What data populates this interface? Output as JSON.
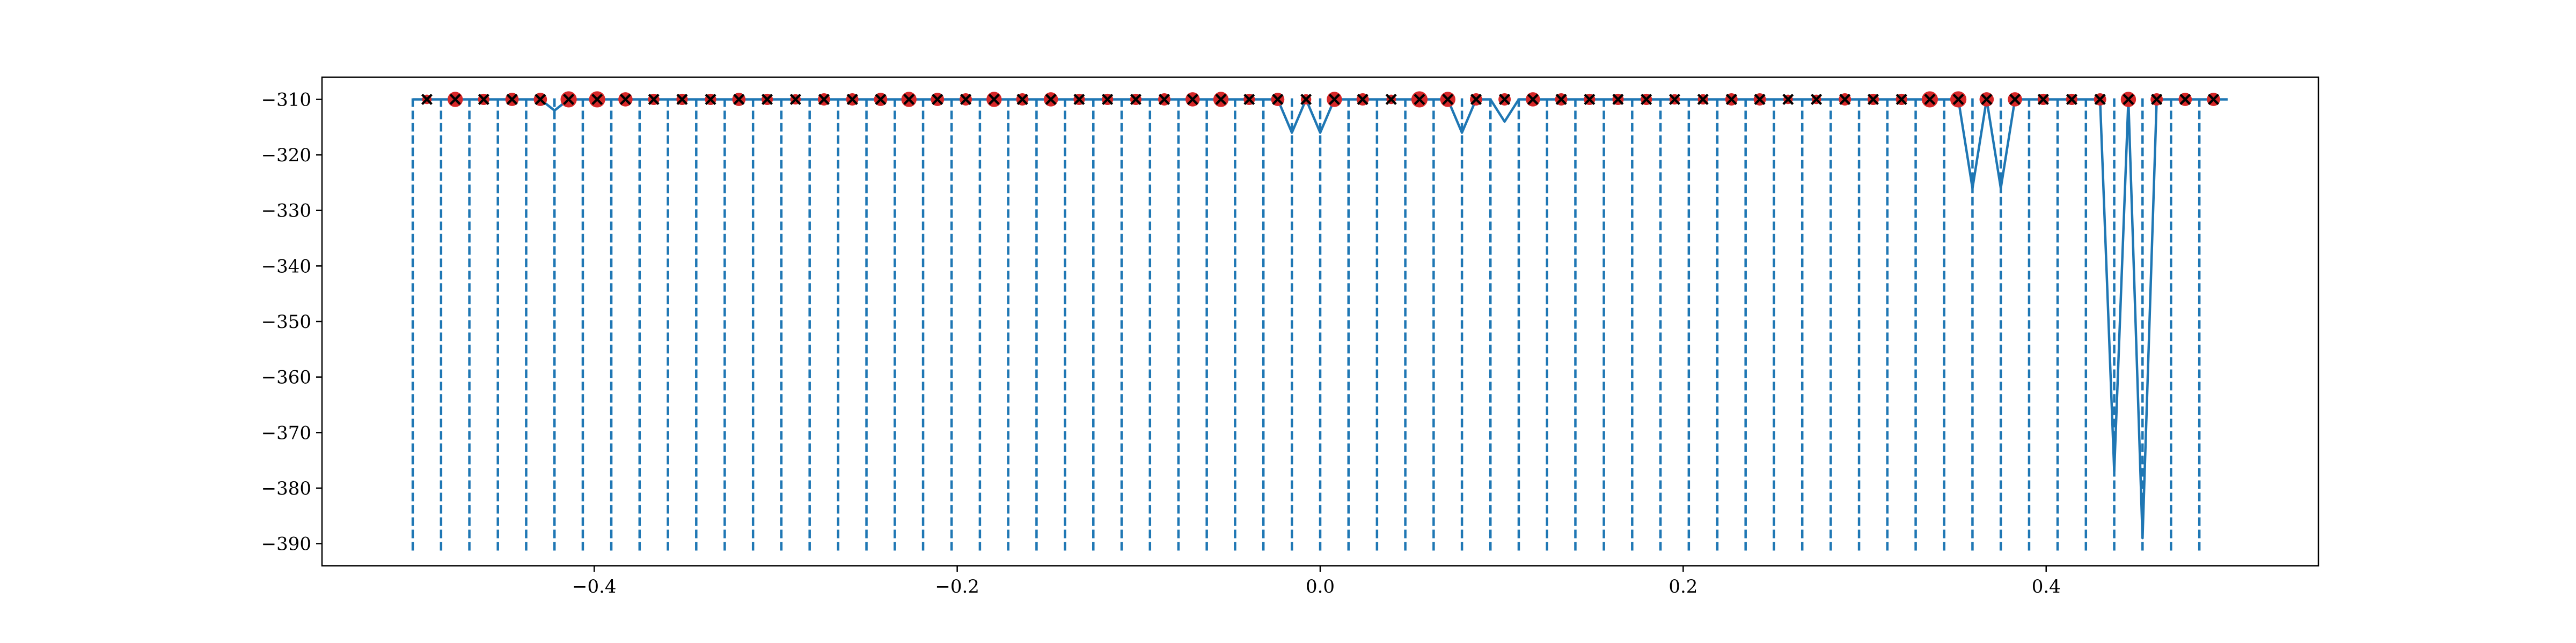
{
  "chart_data": {
    "type": "line",
    "title": "",
    "xlabel": "",
    "ylabel": "",
    "xlim": [
      -0.55,
      0.55
    ],
    "ylim": [
      -394,
      -306
    ],
    "grid": false,
    "legend": "none",
    "x_ticks": [
      -0.4,
      -0.2,
      0.0,
      0.2,
      0.4
    ],
    "x_tick_labels": [
      "−0.4",
      "−0.2",
      "0.0",
      "0.2",
      "0.4"
    ],
    "y_ticks": [
      -310,
      -320,
      -330,
      -340,
      -350,
      -360,
      -370,
      -380,
      -390
    ],
    "y_tick_labels": [
      "−310",
      "−320",
      "−330",
      "−340",
      "−350",
      "−360",
      "−370",
      "−380",
      "−390"
    ],
    "vertical_dashed_lines": {
      "color": "#1f77b4",
      "x": [
        -0.5,
        -0.4844,
        -0.4688,
        -0.4531,
        -0.4375,
        -0.4219,
        -0.4063,
        -0.3906,
        -0.375,
        -0.3594,
        -0.3438,
        -0.3281,
        -0.3125,
        -0.2969,
        -0.2813,
        -0.2656,
        -0.25,
        -0.2344,
        -0.2188,
        -0.2031,
        -0.1875,
        -0.1719,
        -0.1563,
        -0.1406,
        -0.125,
        -0.1094,
        -0.0938,
        -0.0781,
        -0.0625,
        -0.0469,
        -0.0313,
        -0.0156,
        0.0,
        0.0156,
        0.0313,
        0.0469,
        0.0625,
        0.0781,
        0.0938,
        0.1094,
        0.125,
        0.1406,
        0.1563,
        0.1719,
        0.1875,
        0.2031,
        0.2188,
        0.2344,
        0.25,
        0.2656,
        0.2813,
        0.2969,
        0.3125,
        0.3281,
        0.3438,
        0.3594,
        0.375,
        0.3906,
        0.4063,
        0.4219,
        0.4375,
        0.4531,
        0.4688,
        0.4844
      ]
    },
    "series": [
      {
        "type": "line",
        "color": "#1f77b4",
        "x": [
          -0.5,
          -0.4922,
          -0.4844,
          -0.4766,
          -0.4688,
          -0.4609,
          -0.4531,
          -0.4453,
          -0.4375,
          -0.4297,
          -0.4219,
          -0.4141,
          -0.4063,
          -0.3984,
          -0.3906,
          -0.3828,
          -0.375,
          -0.3672,
          -0.3594,
          -0.3516,
          -0.3438,
          -0.3359,
          -0.3281,
          -0.3203,
          -0.3125,
          -0.3047,
          -0.2969,
          -0.2891,
          -0.2813,
          -0.2734,
          -0.2656,
          -0.2578,
          -0.25,
          -0.2422,
          -0.2344,
          -0.2266,
          -0.2188,
          -0.2109,
          -0.2031,
          -0.1953,
          -0.1875,
          -0.1797,
          -0.1719,
          -0.1641,
          -0.1563,
          -0.1484,
          -0.1406,
          -0.1328,
          -0.125,
          -0.1172,
          -0.1094,
          -0.1016,
          -0.0938,
          -0.0859,
          -0.0781,
          -0.0703,
          -0.0625,
          -0.0547,
          -0.0469,
          -0.0391,
          -0.0313,
          -0.0234,
          -0.0156,
          -0.0078,
          0.0,
          0.0078,
          0.0156,
          0.0234,
          0.0313,
          0.0391,
          0.0469,
          0.0547,
          0.0625,
          0.0703,
          0.0781,
          0.0859,
          0.0938,
          0.1016,
          0.1094,
          0.1172,
          0.125,
          0.1328,
          0.1406,
          0.1484,
          0.1563,
          0.1641,
          0.1719,
          0.1797,
          0.1875,
          0.1953,
          0.2031,
          0.2109,
          0.2188,
          0.2266,
          0.2344,
          0.2422,
          0.25,
          0.2578,
          0.2656,
          0.2734,
          0.2813,
          0.2891,
          0.2969,
          0.3047,
          0.3125,
          0.3203,
          0.3281,
          0.3359,
          0.3438,
          0.3516,
          0.3594,
          0.3672,
          0.375,
          0.3828,
          0.3906,
          0.3984,
          0.4063,
          0.4141,
          0.4219,
          0.4297,
          0.4375,
          0.4453,
          0.4531,
          0.4609,
          0.4688,
          0.4766,
          0.4844,
          0.4922,
          0.5
        ],
        "y": [
          -310,
          -310,
          -310,
          -310,
          -310,
          -310,
          -310,
          -310,
          -310,
          -310,
          -312,
          -310,
          -310,
          -310,
          -310,
          -310,
          -310,
          -310,
          -310,
          -310,
          -310,
          -310,
          -310,
          -310,
          -310,
          -310,
          -310,
          -310,
          -310,
          -310,
          -310,
          -310,
          -310,
          -310,
          -310,
          -310,
          -310,
          -310,
          -310,
          -310,
          -310,
          -310,
          -310,
          -310,
          -310,
          -310,
          -310,
          -310,
          -310,
          -310,
          -310,
          -310,
          -310,
          -310,
          -310,
          -310,
          -310,
          -310,
          -310,
          -310,
          -310,
          -310,
          -316,
          -310,
          -316,
          -310,
          -310,
          -310,
          -310,
          -310,
          -310,
          -310,
          -310,
          -310,
          -316,
          -310,
          -310,
          -314,
          -310,
          -310,
          -310,
          -310,
          -310,
          -310,
          -310,
          -310,
          -310,
          -310,
          -310,
          -310,
          -310,
          -310,
          -310,
          -310,
          -310,
          -310,
          -310,
          -310,
          -310,
          -310,
          -310,
          -310,
          -310,
          -310,
          -310,
          -310,
          -310,
          -310,
          -310,
          -310,
          -326,
          -310,
          -326,
          -310,
          -310,
          -310,
          -310,
          -310,
          -310,
          -310,
          -377,
          -310,
          -389,
          -310,
          -310,
          -310,
          -310,
          -310,
          -310
        ]
      },
      {
        "type": "scatter",
        "marker": "x",
        "color": "#000000",
        "x": [
          -0.4922,
          -0.4766,
          -0.4609,
          -0.4453,
          -0.4297,
          -0.4141,
          -0.3984,
          -0.3828,
          -0.3672,
          -0.3516,
          -0.3359,
          -0.3203,
          -0.3047,
          -0.2891,
          -0.2734,
          -0.2578,
          -0.2422,
          -0.2266,
          -0.2109,
          -0.1953,
          -0.1797,
          -0.1641,
          -0.1484,
          -0.1328,
          -0.1172,
          -0.1016,
          -0.0859,
          -0.0703,
          -0.0547,
          -0.0391,
          -0.0234,
          -0.0078,
          0.0078,
          0.0234,
          0.0391,
          0.0547,
          0.0703,
          0.0859,
          0.1016,
          0.1172,
          0.1328,
          0.1484,
          0.1641,
          0.1797,
          0.1953,
          0.2109,
          0.2266,
          0.2422,
          0.2578,
          0.2734,
          0.2891,
          0.3047,
          0.3203,
          0.3359,
          0.3516,
          0.3672,
          0.3828,
          0.3984,
          0.4141,
          0.4297,
          0.4453,
          0.4609,
          0.4766,
          0.4922
        ],
        "y": [
          -310,
          -310,
          -310,
          -310,
          -310,
          -310,
          -310,
          -310,
          -310,
          -310,
          -310,
          -310,
          -310,
          -310,
          -310,
          -310,
          -310,
          -310,
          -310,
          -310,
          -310,
          -310,
          -310,
          -310,
          -310,
          -310,
          -310,
          -310,
          -310,
          -310,
          -310,
          -310,
          -310,
          -310,
          -310,
          -310,
          -310,
          -310,
          -310,
          -310,
          -310,
          -310,
          -310,
          -310,
          -310,
          -310,
          -310,
          -310,
          -310,
          -310,
          -310,
          -310,
          -310,
          -310,
          -310,
          -310,
          -310,
          -310,
          -310,
          -310,
          -310,
          -310,
          -310,
          -310
        ]
      },
      {
        "type": "scatter",
        "marker": "o",
        "color": "#d62728",
        "x": [
          -0.4922,
          -0.4766,
          -0.4609,
          -0.4453,
          -0.4297,
          -0.4141,
          -0.3984,
          -0.3828,
          -0.3672,
          -0.3516,
          -0.3359,
          -0.3203,
          -0.3047,
          -0.2891,
          -0.2734,
          -0.2578,
          -0.2422,
          -0.2266,
          -0.2109,
          -0.1953,
          -0.1797,
          -0.1641,
          -0.1484,
          -0.1328,
          -0.1172,
          -0.1016,
          -0.0859,
          -0.0703,
          -0.0547,
          -0.0391,
          -0.0234,
          -0.0078,
          0.0078,
          0.0234,
          0.0391,
          0.0547,
          0.0703,
          0.0859,
          0.1016,
          0.1172,
          0.1328,
          0.1484,
          0.1641,
          0.1797,
          0.1953,
          0.2109,
          0.2266,
          0.2422,
          0.2578,
          0.2734,
          0.2891,
          0.3047,
          0.3203,
          0.3359,
          0.3516,
          0.3672,
          0.3828,
          0.3984,
          0.4141,
          0.4297,
          0.4453,
          0.4609,
          0.4766,
          0.4922
        ],
        "y": [
          -310,
          -310,
          -310,
          -310,
          -310,
          -310,
          -310,
          -310,
          -310,
          -310,
          -310,
          -310,
          -310,
          -310,
          -310,
          -310,
          -310,
          -310,
          -310,
          -310,
          -310,
          -310,
          -310,
          -310,
          -310,
          -310,
          -310,
          -310,
          -310,
          -310,
          -310,
          -310,
          -310,
          -310,
          -310,
          -310,
          -310,
          -310,
          -310,
          -310,
          -310,
          -310,
          -310,
          -310,
          -310,
          -310,
          -310,
          -310,
          -310,
          -310,
          -310,
          -310,
          -310,
          -310,
          -310,
          -310,
          -310,
          -310,
          -310,
          -310,
          -310,
          -310,
          -310,
          -310
        ],
        "sizes": [
          0.2,
          0.8,
          0.4,
          0.6,
          0.6,
          0.9,
          0.9,
          0.7,
          0.4,
          0.4,
          0.4,
          0.6,
          0.4,
          0.3,
          0.5,
          0.5,
          0.6,
          0.8,
          0.6,
          0.5,
          0.8,
          0.5,
          0.7,
          0.4,
          0.4,
          0.4,
          0.5,
          0.7,
          0.8,
          0.4,
          0.6,
          0.3,
          0.8,
          0.5,
          0.2,
          0.9,
          0.8,
          0.5,
          0.5,
          0.7,
          0.5,
          0.4,
          0.4,
          0.4,
          0.3,
          0.3,
          0.5,
          0.5,
          0.2,
          0.2,
          0.5,
          0.4,
          0.4,
          0.9,
          0.9,
          0.7,
          0.7,
          0.4,
          0.4,
          0.5,
          0.8,
          0.5,
          0.6,
          0.6
        ]
      }
    ]
  }
}
